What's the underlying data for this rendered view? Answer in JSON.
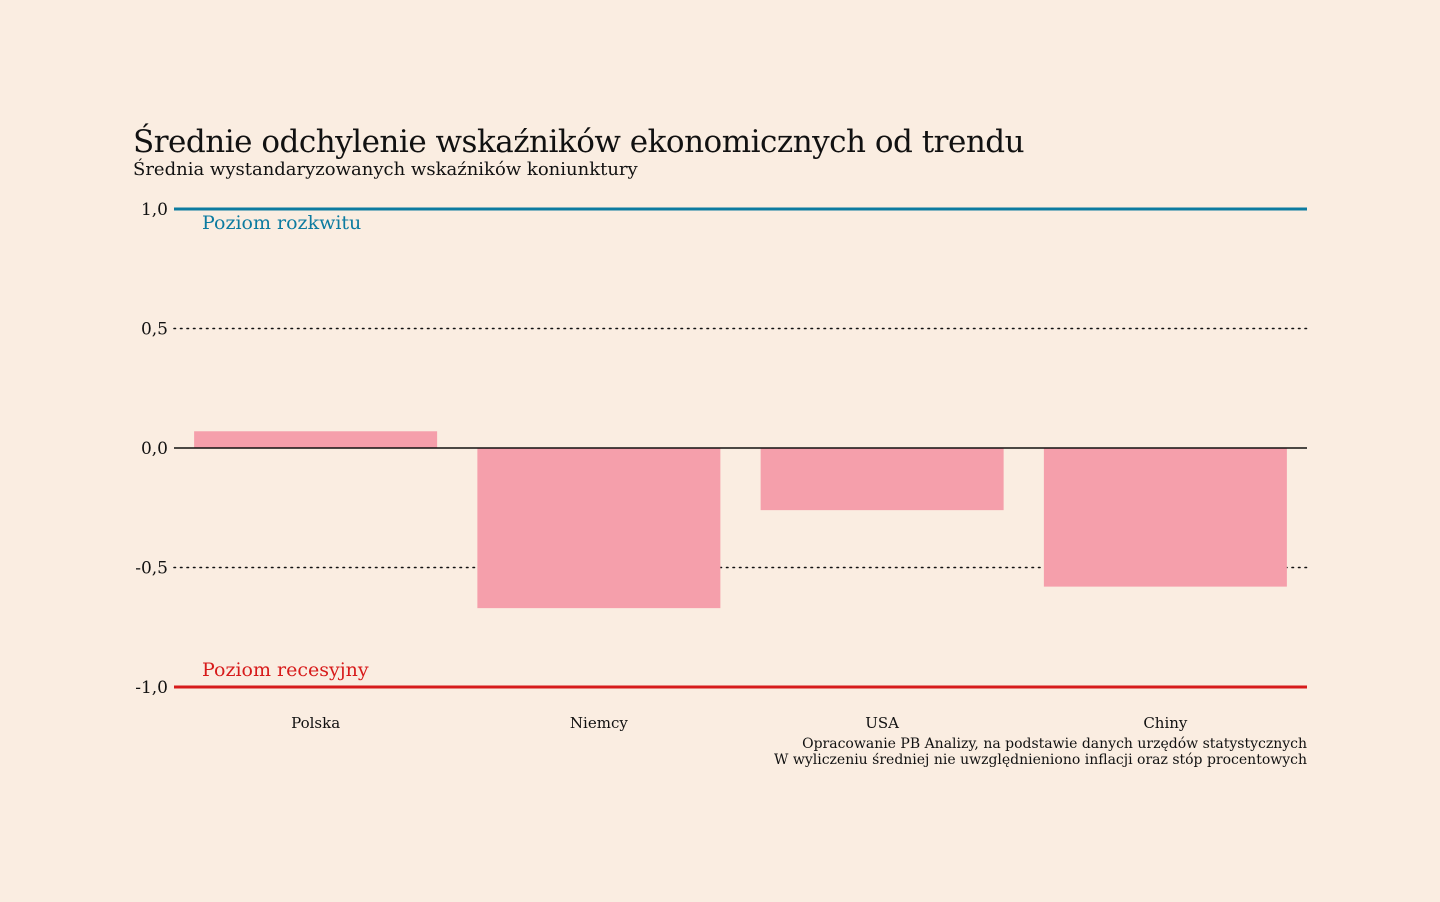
{
  "chart_data": {
    "type": "bar",
    "title": "Średnie odchylenie wskaźników ekonomicznych od trendu",
    "subtitle": "Średnia wystandaryzowanych wskaźników koniunktury",
    "categories": [
      "Polska",
      "Niemcy",
      "USA",
      "Chiny"
    ],
    "values": [
      0.07,
      -0.67,
      -0.26,
      -0.58
    ],
    "ylim": [
      -1.0,
      1.0
    ],
    "yticks": [
      1.0,
      0.5,
      0.0,
      -0.5,
      -1.0
    ],
    "ytick_labels": [
      "1,0",
      "0,5",
      "0,0",
      "-0,5",
      "-1,0"
    ],
    "grid": "dotted",
    "reference_lines": [
      {
        "value": 1.0,
        "label": "Poziom rozkwitu",
        "color": "#0c7ba0"
      },
      {
        "value": -1.0,
        "label": "Poziom recesyjny",
        "color": "#d71b1b"
      }
    ],
    "bar_color": "#f59fab",
    "source_lines": [
      "Opracowanie PB Analizy, na podstawie danych urzędów statystycznych",
      "W wyliczeniu średniej nie uwzględnieniono inflacji oraz stóp procentowych"
    ]
  }
}
